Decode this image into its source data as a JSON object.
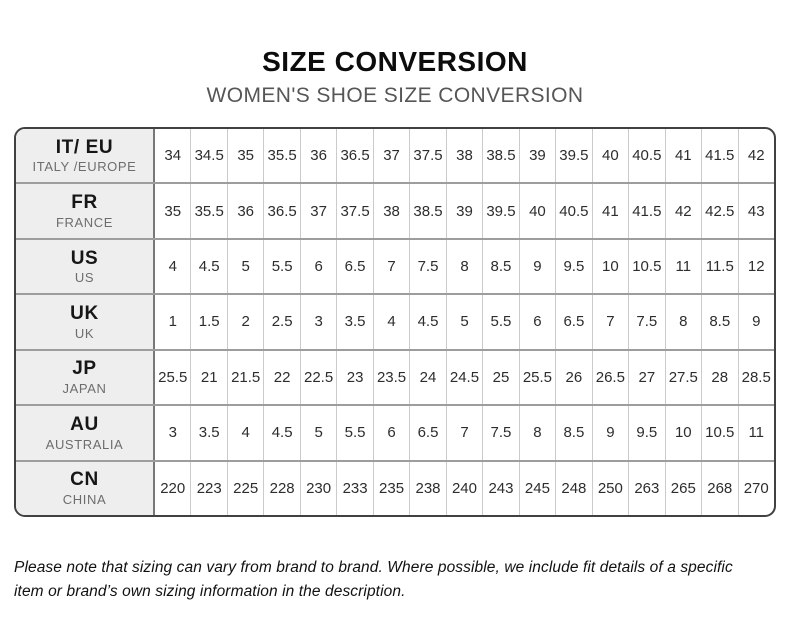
{
  "page": {
    "title": "SIZE CONVERSION",
    "subtitle": "WOMEN'S SHOE SIZE CONVERSION",
    "footnote": "Please note that sizing can vary from brand to brand. Where possible, we include fit details of a specific item or brand’s own sizing information in the description."
  },
  "colors": {
    "title_text": "#0c0c0c",
    "subtitle_text": "#565656",
    "header_cell_bg": "#eeeeee",
    "header_region_text": "#6d6d6d",
    "outer_border": "#414141",
    "row_divider": "#9d9d9d",
    "column_divider": "#cbcbcb",
    "value_text": "#2d2d2d"
  },
  "chart_data": {
    "type": "table",
    "title": "SIZE CONVERSION",
    "subtitle": "WOMEN'S SHOE SIZE CONVERSION",
    "row_header_columns": [
      "code",
      "region"
    ],
    "rows": [
      {
        "code": "IT/ EU",
        "region": "ITALY /EUROPE",
        "values": [
          "34",
          "34.5",
          "35",
          "35.5",
          "36",
          "36.5",
          "37",
          "37.5",
          "38",
          "38.5",
          "39",
          "39.5",
          "40",
          "40.5",
          "41",
          "41.5",
          "42"
        ]
      },
      {
        "code": "FR",
        "region": "FRANCE",
        "values": [
          "35",
          "35.5",
          "36",
          "36.5",
          "37",
          "37.5",
          "38",
          "38.5",
          "39",
          "39.5",
          "40",
          "40.5",
          "41",
          "41.5",
          "42",
          "42.5",
          "43"
        ]
      },
      {
        "code": "US",
        "region": "US",
        "values": [
          "4",
          "4.5",
          "5",
          "5.5",
          "6",
          "6.5",
          "7",
          "7.5",
          "8",
          "8.5",
          "9",
          "9.5",
          "10",
          "10.5",
          "11",
          "11.5",
          "12"
        ]
      },
      {
        "code": "UK",
        "region": "UK",
        "values": [
          "1",
          "1.5",
          "2",
          "2.5",
          "3",
          "3.5",
          "4",
          "4.5",
          "5",
          "5.5",
          "6",
          "6.5",
          "7",
          "7.5",
          "8",
          "8.5",
          "9"
        ]
      },
      {
        "code": "JP",
        "region": "JAPAN",
        "values": [
          "25.5",
          "21",
          "21.5",
          "22",
          "22.5",
          "23",
          "23.5",
          "24",
          "24.5",
          "25",
          "25.5",
          "26",
          "26.5",
          "27",
          "27.5",
          "28",
          "28.5"
        ]
      },
      {
        "code": "AU",
        "region": "AUSTRALIA",
        "values": [
          "3",
          "3.5",
          "4",
          "4.5",
          "5",
          "5.5",
          "6",
          "6.5",
          "7",
          "7.5",
          "8",
          "8.5",
          "9",
          "9.5",
          "10",
          "10.5",
          "11"
        ]
      },
      {
        "code": "CN",
        "region": "CHINA",
        "values": [
          "220",
          "223",
          "225",
          "228",
          "230",
          "233",
          "235",
          "238",
          "240",
          "243",
          "245",
          "248",
          "250",
          "263",
          "265",
          "268",
          "270"
        ]
      }
    ]
  }
}
